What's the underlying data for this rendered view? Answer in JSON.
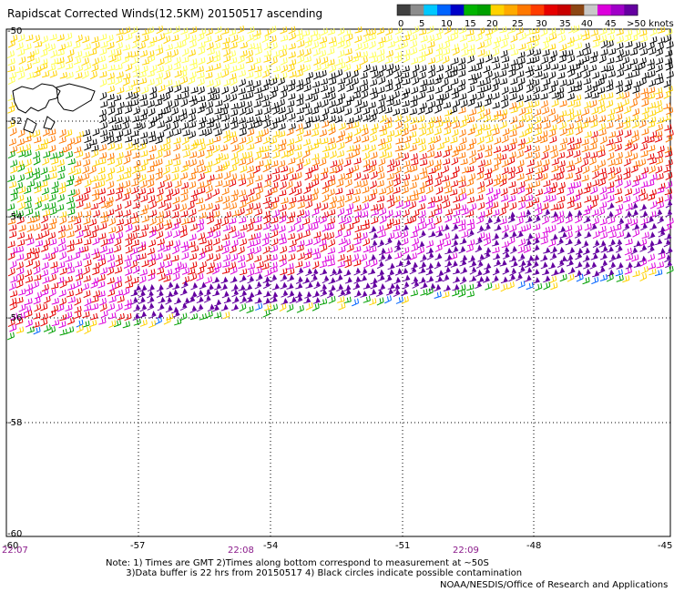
{
  "title": "Rapidscat Corrected Winds(12.5KM) 20150517 ascending",
  "legend": {
    "ticks": [
      "0",
      "5",
      "10",
      "15",
      "20",
      "25",
      "30",
      "35",
      "40",
      "45",
      ">50 knots"
    ],
    "colors": [
      "#404040",
      "#8c8c8c",
      "#00c8ff",
      "#0064ff",
      "#0000c8",
      "#00b400",
      "#00a000",
      "#ffd200",
      "#ffaa00",
      "#ff7800",
      "#ff3c00",
      "#e60000",
      "#c80000",
      "#8c4614",
      "#c8c8c8",
      "#dc00dc",
      "#a000c8",
      "#6400a0"
    ]
  },
  "axes": {
    "y_labels": [
      "-50",
      "-52",
      "-54",
      "-56",
      "-58",
      "-60"
    ],
    "x_labels": [
      "-57",
      "-54",
      "-51",
      "-48",
      "-45"
    ],
    "x_left_label": "-60"
  },
  "times": [
    "22:07",
    "22:08",
    "22:09"
  ],
  "notes": {
    "line1": "Note: 1) Times are GMT 2)Times along bottom correspond to measurement at ~50S",
    "line2": "       3)Data buffer is 22 hrs from 20150517 4) Black circles indicate possible contamination"
  },
  "credit": "NOAA/NESDIS/Office of Research and Applications",
  "colors": {
    "calm_black": "#000000",
    "light_yellow": "#ffff50",
    "yellow": "#ffd200",
    "orange": "#ff7800",
    "red": "#e60000",
    "magenta": "#dc00dc",
    "purple": "#6400a0",
    "green": "#00a000",
    "blue": "#0064ff"
  }
}
